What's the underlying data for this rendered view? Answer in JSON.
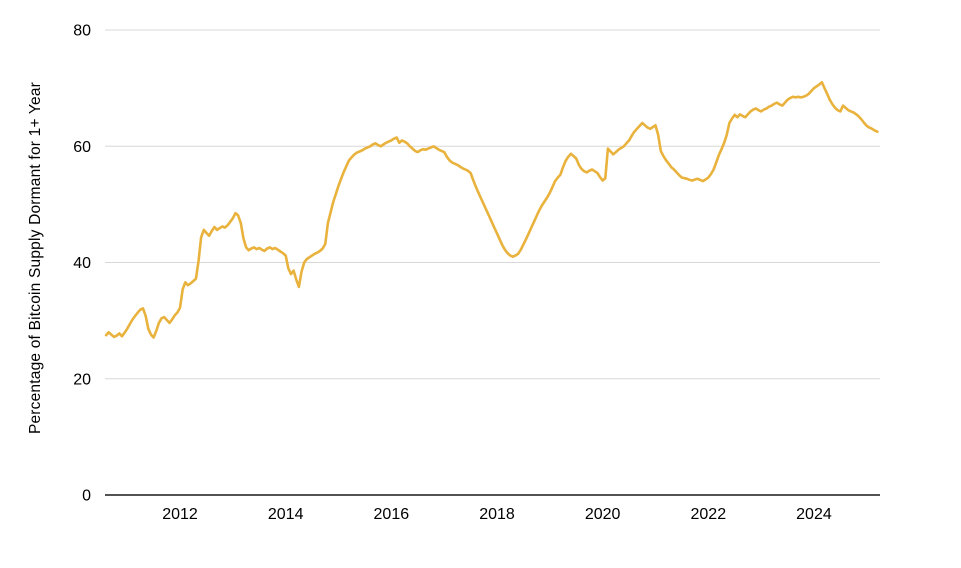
{
  "chart_data": {
    "type": "line",
    "title": "",
    "xlabel": "",
    "ylabel": "Percentage of Bitcoin Supply Dormant for 1+ Year",
    "ylim": [
      0,
      80
    ],
    "yticks": [
      0,
      20,
      40,
      60,
      80
    ],
    "xticks": [
      2012,
      2014,
      2016,
      2018,
      2020,
      2022,
      2024
    ],
    "xlim": [
      2010.58,
      2025.25
    ],
    "grid": true,
    "legend": "none",
    "line_color": "#E9B23D",
    "grid_color": "#D8D8D8",
    "axis_color": "#1a1a1a",
    "text_color": "#000000",
    "series": [
      {
        "name": "Percentage of Bitcoin Supply Dormant for 1+ Year",
        "points": [
          [
            2010.6,
            27.5
          ],
          [
            2010.65,
            28.0
          ],
          [
            2010.7,
            27.6
          ],
          [
            2010.75,
            27.2
          ],
          [
            2010.8,
            27.4
          ],
          [
            2010.85,
            27.8
          ],
          [
            2010.9,
            27.3
          ],
          [
            2010.95,
            27.9
          ],
          [
            2011.0,
            28.6
          ],
          [
            2011.05,
            29.4
          ],
          [
            2011.1,
            30.2
          ],
          [
            2011.15,
            30.8
          ],
          [
            2011.2,
            31.4
          ],
          [
            2011.25,
            31.9
          ],
          [
            2011.3,
            32.1
          ],
          [
            2011.35,
            30.8
          ],
          [
            2011.4,
            28.6
          ],
          [
            2011.45,
            27.6
          ],
          [
            2011.5,
            27.1
          ],
          [
            2011.55,
            28.2
          ],
          [
            2011.6,
            29.6
          ],
          [
            2011.65,
            30.4
          ],
          [
            2011.7,
            30.6
          ],
          [
            2011.75,
            30.1
          ],
          [
            2011.8,
            29.6
          ],
          [
            2011.85,
            30.2
          ],
          [
            2011.9,
            30.9
          ],
          [
            2011.95,
            31.4
          ],
          [
            2012.0,
            32.2
          ],
          [
            2012.05,
            35.4
          ],
          [
            2012.1,
            36.6
          ],
          [
            2012.15,
            36.1
          ],
          [
            2012.2,
            36.4
          ],
          [
            2012.25,
            36.8
          ],
          [
            2012.3,
            37.2
          ],
          [
            2012.35,
            40.2
          ],
          [
            2012.4,
            44.3
          ],
          [
            2012.45,
            45.6
          ],
          [
            2012.5,
            45.1
          ],
          [
            2012.55,
            44.6
          ],
          [
            2012.6,
            45.4
          ],
          [
            2012.65,
            46.1
          ],
          [
            2012.7,
            45.6
          ],
          [
            2012.75,
            45.9
          ],
          [
            2012.8,
            46.2
          ],
          [
            2012.85,
            46.0
          ],
          [
            2012.9,
            46.4
          ],
          [
            2012.95,
            47.0
          ],
          [
            2013.0,
            47.6
          ],
          [
            2013.05,
            48.5
          ],
          [
            2013.1,
            48.1
          ],
          [
            2013.15,
            46.8
          ],
          [
            2013.2,
            44.2
          ],
          [
            2013.25,
            42.6
          ],
          [
            2013.3,
            42.1
          ],
          [
            2013.35,
            42.4
          ],
          [
            2013.4,
            42.6
          ],
          [
            2013.45,
            42.3
          ],
          [
            2013.5,
            42.5
          ],
          [
            2013.55,
            42.2
          ],
          [
            2013.6,
            42.0
          ],
          [
            2013.65,
            42.4
          ],
          [
            2013.7,
            42.6
          ],
          [
            2013.75,
            42.3
          ],
          [
            2013.8,
            42.5
          ],
          [
            2013.85,
            42.2
          ],
          [
            2013.9,
            41.9
          ],
          [
            2013.95,
            41.6
          ],
          [
            2014.0,
            41.2
          ],
          [
            2014.05,
            39.0
          ],
          [
            2014.1,
            38.0
          ],
          [
            2014.15,
            38.6
          ],
          [
            2014.2,
            37.1
          ],
          [
            2014.25,
            35.8
          ],
          [
            2014.3,
            38.4
          ],
          [
            2014.35,
            40.0
          ],
          [
            2014.4,
            40.6
          ],
          [
            2014.45,
            40.9
          ],
          [
            2014.5,
            41.2
          ],
          [
            2014.55,
            41.5
          ],
          [
            2014.6,
            41.7
          ],
          [
            2014.65,
            42.0
          ],
          [
            2014.7,
            42.4
          ],
          [
            2014.75,
            43.2
          ],
          [
            2014.8,
            46.8
          ],
          [
            2014.85,
            48.6
          ],
          [
            2014.9,
            50.4
          ],
          [
            2014.95,
            51.8
          ],
          [
            2015.0,
            53.2
          ],
          [
            2015.05,
            54.4
          ],
          [
            2015.1,
            55.6
          ],
          [
            2015.15,
            56.6
          ],
          [
            2015.2,
            57.6
          ],
          [
            2015.25,
            58.1
          ],
          [
            2015.3,
            58.6
          ],
          [
            2015.35,
            58.9
          ],
          [
            2015.4,
            59.1
          ],
          [
            2015.45,
            59.3
          ],
          [
            2015.5,
            59.6
          ],
          [
            2015.55,
            59.8
          ],
          [
            2015.6,
            60.0
          ],
          [
            2015.65,
            60.3
          ],
          [
            2015.7,
            60.5
          ],
          [
            2015.75,
            60.2
          ],
          [
            2015.8,
            60.0
          ],
          [
            2015.85,
            60.3
          ],
          [
            2015.9,
            60.6
          ],
          [
            2015.95,
            60.8
          ],
          [
            2016.0,
            61.0
          ],
          [
            2016.05,
            61.3
          ],
          [
            2016.1,
            61.5
          ],
          [
            2016.15,
            60.6
          ],
          [
            2016.2,
            61.0
          ],
          [
            2016.25,
            60.8
          ],
          [
            2016.3,
            60.5
          ],
          [
            2016.35,
            60.0
          ],
          [
            2016.4,
            59.6
          ],
          [
            2016.45,
            59.2
          ],
          [
            2016.5,
            59.0
          ],
          [
            2016.55,
            59.3
          ],
          [
            2016.6,
            59.5
          ],
          [
            2016.65,
            59.4
          ],
          [
            2016.7,
            59.6
          ],
          [
            2016.75,
            59.8
          ],
          [
            2016.8,
            60.0
          ],
          [
            2016.85,
            59.7
          ],
          [
            2016.9,
            59.4
          ],
          [
            2016.95,
            59.2
          ],
          [
            2017.0,
            59.0
          ],
          [
            2017.05,
            58.2
          ],
          [
            2017.1,
            57.6
          ],
          [
            2017.15,
            57.2
          ],
          [
            2017.2,
            57.0
          ],
          [
            2017.25,
            56.8
          ],
          [
            2017.3,
            56.5
          ],
          [
            2017.35,
            56.2
          ],
          [
            2017.4,
            56.0
          ],
          [
            2017.45,
            55.8
          ],
          [
            2017.5,
            55.4
          ],
          [
            2017.55,
            54.2
          ],
          [
            2017.6,
            53.0
          ],
          [
            2017.65,
            52.0
          ],
          [
            2017.7,
            51.0
          ],
          [
            2017.75,
            50.0
          ],
          [
            2017.8,
            49.0
          ],
          [
            2017.85,
            48.0
          ],
          [
            2017.9,
            47.0
          ],
          [
            2017.95,
            46.0
          ],
          [
            2018.0,
            45.0
          ],
          [
            2018.05,
            44.0
          ],
          [
            2018.1,
            43.0
          ],
          [
            2018.15,
            42.2
          ],
          [
            2018.2,
            41.6
          ],
          [
            2018.25,
            41.2
          ],
          [
            2018.3,
            41.0
          ],
          [
            2018.35,
            41.2
          ],
          [
            2018.4,
            41.5
          ],
          [
            2018.45,
            42.2
          ],
          [
            2018.5,
            43.1
          ],
          [
            2018.55,
            44.0
          ],
          [
            2018.6,
            45.0
          ],
          [
            2018.65,
            46.0
          ],
          [
            2018.7,
            47.0
          ],
          [
            2018.75,
            48.0
          ],
          [
            2018.8,
            49.0
          ],
          [
            2018.85,
            49.8
          ],
          [
            2018.9,
            50.5
          ],
          [
            2018.95,
            51.2
          ],
          [
            2019.0,
            52.0
          ],
          [
            2019.05,
            53.0
          ],
          [
            2019.1,
            54.0
          ],
          [
            2019.15,
            54.6
          ],
          [
            2019.2,
            55.1
          ],
          [
            2019.25,
            56.4
          ],
          [
            2019.3,
            57.5
          ],
          [
            2019.35,
            58.2
          ],
          [
            2019.4,
            58.7
          ],
          [
            2019.45,
            58.3
          ],
          [
            2019.5,
            57.9
          ],
          [
            2019.55,
            56.8
          ],
          [
            2019.6,
            56.1
          ],
          [
            2019.65,
            55.7
          ],
          [
            2019.7,
            55.5
          ],
          [
            2019.75,
            55.8
          ],
          [
            2019.8,
            56.0
          ],
          [
            2019.85,
            55.7
          ],
          [
            2019.9,
            55.4
          ],
          [
            2019.95,
            54.7
          ],
          [
            2020.0,
            54.1
          ],
          [
            2020.05,
            54.5
          ],
          [
            2020.1,
            59.6
          ],
          [
            2020.15,
            59.1
          ],
          [
            2020.2,
            58.6
          ],
          [
            2020.25,
            59.0
          ],
          [
            2020.3,
            59.4
          ],
          [
            2020.35,
            59.7
          ],
          [
            2020.4,
            60.0
          ],
          [
            2020.45,
            60.5
          ],
          [
            2020.5,
            61.0
          ],
          [
            2020.55,
            61.8
          ],
          [
            2020.6,
            62.5
          ],
          [
            2020.65,
            63.0
          ],
          [
            2020.7,
            63.5
          ],
          [
            2020.75,
            64.0
          ],
          [
            2020.8,
            63.6
          ],
          [
            2020.85,
            63.2
          ],
          [
            2020.9,
            63.0
          ],
          [
            2020.95,
            63.3
          ],
          [
            2021.0,
            63.6
          ],
          [
            2021.05,
            62.0
          ],
          [
            2021.1,
            59.2
          ],
          [
            2021.15,
            58.3
          ],
          [
            2021.2,
            57.6
          ],
          [
            2021.25,
            57.0
          ],
          [
            2021.3,
            56.4
          ],
          [
            2021.35,
            56.0
          ],
          [
            2021.4,
            55.5
          ],
          [
            2021.45,
            55.0
          ],
          [
            2021.5,
            54.6
          ],
          [
            2021.55,
            54.5
          ],
          [
            2021.6,
            54.4
          ],
          [
            2021.65,
            54.2
          ],
          [
            2021.7,
            54.1
          ],
          [
            2021.75,
            54.3
          ],
          [
            2021.8,
            54.4
          ],
          [
            2021.85,
            54.2
          ],
          [
            2021.9,
            54.0
          ],
          [
            2021.95,
            54.3
          ],
          [
            2022.0,
            54.6
          ],
          [
            2022.05,
            55.2
          ],
          [
            2022.1,
            56.0
          ],
          [
            2022.15,
            57.2
          ],
          [
            2022.2,
            58.5
          ],
          [
            2022.25,
            59.5
          ],
          [
            2022.3,
            60.6
          ],
          [
            2022.35,
            62.0
          ],
          [
            2022.4,
            64.0
          ],
          [
            2022.45,
            64.8
          ],
          [
            2022.5,
            65.4
          ],
          [
            2022.55,
            65.0
          ],
          [
            2022.6,
            65.5
          ],
          [
            2022.65,
            65.2
          ],
          [
            2022.7,
            65.0
          ],
          [
            2022.75,
            65.5
          ],
          [
            2022.8,
            66.0
          ],
          [
            2022.85,
            66.3
          ],
          [
            2022.9,
            66.5
          ],
          [
            2022.95,
            66.2
          ],
          [
            2023.0,
            66.0
          ],
          [
            2023.05,
            66.3
          ],
          [
            2023.1,
            66.5
          ],
          [
            2023.15,
            66.8
          ],
          [
            2023.2,
            67.0
          ],
          [
            2023.25,
            67.3
          ],
          [
            2023.3,
            67.5
          ],
          [
            2023.35,
            67.2
          ],
          [
            2023.4,
            67.0
          ],
          [
            2023.45,
            67.5
          ],
          [
            2023.5,
            68.0
          ],
          [
            2023.55,
            68.3
          ],
          [
            2023.6,
            68.5
          ],
          [
            2023.65,
            68.4
          ],
          [
            2023.7,
            68.5
          ],
          [
            2023.75,
            68.4
          ],
          [
            2023.8,
            68.5
          ],
          [
            2023.85,
            68.7
          ],
          [
            2023.9,
            69.0
          ],
          [
            2023.95,
            69.5
          ],
          [
            2024.0,
            70.0
          ],
          [
            2024.05,
            70.3
          ],
          [
            2024.1,
            70.6
          ],
          [
            2024.15,
            71.0
          ],
          [
            2024.2,
            70.0
          ],
          [
            2024.25,
            69.0
          ],
          [
            2024.3,
            68.0
          ],
          [
            2024.35,
            67.2
          ],
          [
            2024.4,
            66.6
          ],
          [
            2024.45,
            66.2
          ],
          [
            2024.5,
            66.0
          ],
          [
            2024.55,
            67.0
          ],
          [
            2024.6,
            66.6
          ],
          [
            2024.65,
            66.2
          ],
          [
            2024.7,
            66.0
          ],
          [
            2024.75,
            65.8
          ],
          [
            2024.8,
            65.5
          ],
          [
            2024.85,
            65.1
          ],
          [
            2024.9,
            64.6
          ],
          [
            2024.95,
            64.0
          ],
          [
            2025.0,
            63.5
          ],
          [
            2025.05,
            63.2
          ],
          [
            2025.1,
            63.0
          ],
          [
            2025.15,
            62.7
          ],
          [
            2025.2,
            62.5
          ]
        ]
      }
    ]
  }
}
